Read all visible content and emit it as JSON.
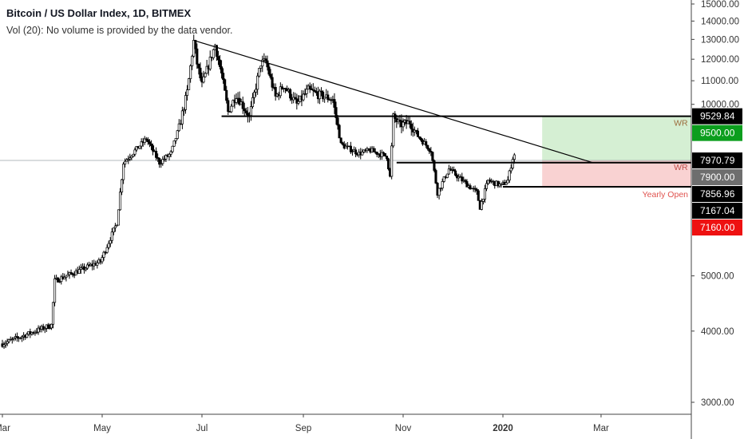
{
  "header": {
    "title": "Bitcoin / US Dollar Index, 1D, BITMEX",
    "volume_note": "Vol (20): No volume is provided by the data vendor."
  },
  "chart_data": {
    "type": "candlestick",
    "title": "Bitcoin / US Dollar Index, 1D, BITMEX",
    "y_scale": "log",
    "ylim": [
      2700,
      15600
    ],
    "y_ticks": [
      "3000.00",
      "4000.00",
      "5000.00",
      "10000.00",
      "11000.00",
      "12000.00",
      "13000.00",
      "14000.00",
      "15000.00"
    ],
    "x_ticks": [
      {
        "label": "Mar",
        "date": "2019-03-01",
        "bold": false
      },
      {
        "label": "May",
        "date": "2019-05-01",
        "bold": false
      },
      {
        "label": "Jul",
        "date": "2019-07-01",
        "bold": false
      },
      {
        "label": "Sep",
        "date": "2019-09-01",
        "bold": false
      },
      {
        "label": "Nov",
        "date": "2019-11-01",
        "bold": false
      },
      {
        "label": "2020",
        "date": "2020-01-01",
        "bold": true
      },
      {
        "label": "Mar",
        "date": "2020-03-01",
        "bold": false
      }
    ],
    "xlim": [
      "2019-03-01",
      "2020-04-25"
    ],
    "price_path": [
      [
        "2019-03-01",
        3800
      ],
      [
        "2019-03-31",
        4100
      ],
      [
        "2019-04-02",
        4900
      ],
      [
        "2019-04-30",
        5300
      ],
      [
        "2019-05-10",
        6200
      ],
      [
        "2019-05-14",
        7900
      ],
      [
        "2019-05-28",
        8700
      ],
      [
        "2019-06-05",
        7900
      ],
      [
        "2019-06-12",
        8200
      ],
      [
        "2019-06-17",
        9100
      ],
      [
        "2019-06-22",
        10500
      ],
      [
        "2019-06-26",
        12900
      ],
      [
        "2019-06-28",
        11800
      ],
      [
        "2019-07-01",
        10800
      ],
      [
        "2019-07-09",
        12700
      ],
      [
        "2019-07-13",
        11300
      ],
      [
        "2019-07-17",
        9700
      ],
      [
        "2019-07-22",
        10400
      ],
      [
        "2019-07-30",
        9500
      ],
      [
        "2019-08-06",
        11800
      ],
      [
        "2019-08-09",
        11900
      ],
      [
        "2019-08-15",
        10300
      ],
      [
        "2019-08-20",
        10800
      ],
      [
        "2019-08-28",
        10000
      ],
      [
        "2019-09-04",
        10600
      ],
      [
        "2019-09-10",
        10400
      ],
      [
        "2019-09-19",
        10200
      ],
      [
        "2019-09-24",
        8500
      ],
      [
        "2019-10-05",
        8200
      ],
      [
        "2019-10-12",
        8300
      ],
      [
        "2019-10-22",
        8100
      ],
      [
        "2019-10-24",
        7450
      ],
      [
        "2019-10-26",
        9500
      ],
      [
        "2019-10-30",
        9200
      ],
      [
        "2019-11-05",
        9300
      ],
      [
        "2019-11-10",
        8800
      ],
      [
        "2019-11-18",
        8300
      ],
      [
        "2019-11-22",
        7000
      ],
      [
        "2019-11-29",
        7700
      ],
      [
        "2019-12-06",
        7400
      ],
      [
        "2019-12-16",
        7000
      ],
      [
        "2019-12-18",
        6600
      ],
      [
        "2019-12-23",
        7350
      ],
      [
        "2019-12-31",
        7200
      ],
      [
        "2020-01-04",
        7350
      ],
      [
        "2020-01-07",
        8050
      ],
      [
        "2020-01-08",
        8150
      ]
    ],
    "trendline": {
      "from": [
        "2019-06-26",
        12950
      ],
      "to": [
        "2020-02-25",
        7900
      ]
    },
    "horizontal_levels": [
      {
        "price": 9529.84,
        "from": "2019-07-13",
        "to": "2020-04-25"
      },
      {
        "price": 7900.0,
        "from": "2019-10-28",
        "to": "2020-04-25"
      },
      {
        "price": 7167.04,
        "from": "2020-01-01",
        "to": "2020-04-25"
      }
    ],
    "crosshair_price": 7970.79,
    "zones": [
      {
        "name": "WR",
        "top": 9529.84,
        "bottom": 7970.79,
        "from": "2020-01-25",
        "to": "2020-04-25",
        "fill": "#d5efd3",
        "label_color": "#9c6b3c"
      },
      {
        "name": "WR",
        "top": 7970.79,
        "bottom": 7167.04,
        "from": "2020-01-25",
        "to": "2020-04-25",
        "fill": "#f9d2d2",
        "label_color": "#c0504d"
      }
    ],
    "annotations": [
      {
        "text": "Yearly Open",
        "price": 7167.04,
        "color": "#e0524e"
      }
    ],
    "price_labels": [
      {
        "text": "9529.84",
        "price": 9529.84,
        "bg": "#000000",
        "fg": "#ffffff"
      },
      {
        "text": "9500.00",
        "price": 9500.0,
        "bg": "#0b9e1d",
        "fg": "#ffffff"
      },
      {
        "text": "7970.79",
        "price": 7970.79,
        "bg": "#000000",
        "fg": "#ffffff"
      },
      {
        "text": "7900.00",
        "price": 7900.0,
        "bg": "#6e6e6e",
        "fg": "#ffffff"
      },
      {
        "text": "7856.96",
        "price": 7856.96,
        "bg": "#000000",
        "fg": "#ffffff"
      },
      {
        "text": "7167.04",
        "price": 7167.04,
        "bg": "#000000",
        "fg": "#ffffff"
      },
      {
        "text": "7160.00",
        "price": 7160.0,
        "bg": "#ee1111",
        "fg": "#ffffff"
      }
    ]
  }
}
